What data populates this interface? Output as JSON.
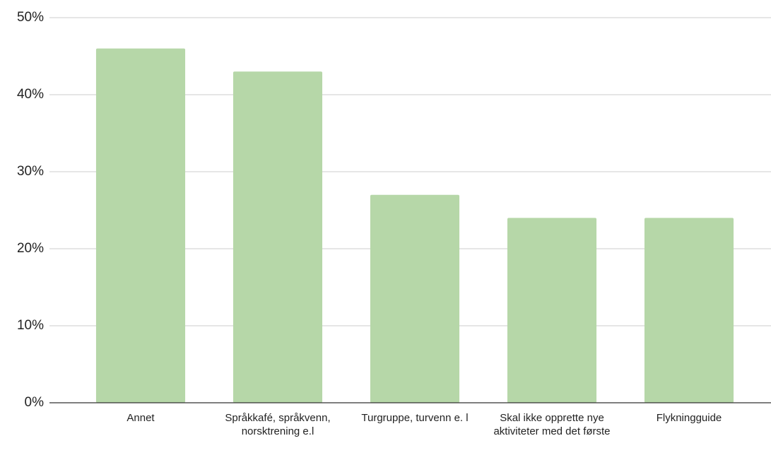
{
  "chart_data": {
    "type": "bar",
    "categories": [
      "Annet",
      "Språkkafé, språkvenn, norsktrening e.l",
      "Turgruppe, turvenn e. l",
      "Skal ikke opprette nye aktiviteter med det første",
      "Flykningguide"
    ],
    "values": [
      46,
      43,
      27,
      24,
      24
    ],
    "color": "#b6d7a8",
    "ylim": [
      0,
      50
    ],
    "yticks": [
      {
        "value": 0,
        "label": "0%"
      },
      {
        "value": 10,
        "label": "10%"
      },
      {
        "value": 20,
        "label": "20%"
      },
      {
        "value": 30,
        "label": "30%"
      },
      {
        "value": 40,
        "label": "40%"
      },
      {
        "value": 50,
        "label": "50%"
      }
    ],
    "grid": true
  }
}
